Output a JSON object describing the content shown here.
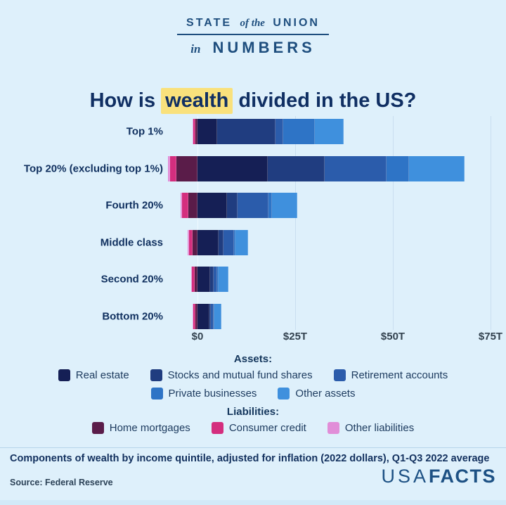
{
  "masthead": {
    "word1": "STATE",
    "word2": "of the",
    "word3": "UNION",
    "word4": "in",
    "word5": "NUMBERS"
  },
  "title": {
    "prefix": "How is ",
    "highlight": "wealth",
    "suffix": " divided in the US?",
    "highlight_color": "#f9e17c"
  },
  "chart_data": {
    "type": "bar",
    "orientation": "horizontal-stacked",
    "title": "How is wealth divided in the US?",
    "unit": "trillions of US dollars",
    "xlim": [
      -10,
      78
    ],
    "grid": true,
    "categories": [
      "Top 1%",
      "Top 20% (excluding top 1%)",
      "Fourth 20%",
      "Middle class",
      "Second 20%",
      "Bottom 20%"
    ],
    "x_ticks": {
      "labels": [
        "$0",
        "$25T",
        "$50T",
        "$75T"
      ],
      "values": [
        0,
        25,
        50,
        75
      ]
    },
    "asset_series": [
      {
        "name": "Real estate",
        "color": "#151f55",
        "values": [
          5.0,
          18.0,
          7.5,
          5.4,
          3.2,
          3.0
        ]
      },
      {
        "name": "Stocks and mutual fund shares",
        "color": "#203d80",
        "values": [
          15.0,
          14.5,
          2.7,
          1.2,
          0.9,
          0.5
        ]
      },
      {
        "name": "Retirement accounts",
        "color": "#2b5cab",
        "values": [
          1.9,
          15.8,
          8.0,
          2.7,
          1.0,
          0.6
        ]
      },
      {
        "name": "Private businesses",
        "color": "#2e74c6",
        "values": [
          8.1,
          5.9,
          0.9,
          0.4,
          0.3,
          0.2
        ]
      },
      {
        "name": "Other assets",
        "color": "#3f90dd",
        "values": [
          7.5,
          14.2,
          6.4,
          3.2,
          2.5,
          1.8
        ]
      }
    ],
    "liability_series": [
      {
        "name": "Home mortgages",
        "color": "#5a1c49",
        "values": [
          0.6,
          5.4,
          2.4,
          1.3,
          0.7,
          0.5
        ]
      },
      {
        "name": "Consumer credit",
        "color": "#d42e7e",
        "values": [
          0.4,
          1.6,
          1.6,
          0.9,
          0.7,
          0.5
        ]
      },
      {
        "name": "Other liabilities",
        "color": "#e18ed8",
        "values": [
          0.3,
          0.6,
          0.4,
          0.3,
          0.2,
          0.2
        ]
      }
    ],
    "legend_position": "bottom",
    "note": "liabilities extend left of the $0 line"
  },
  "legend": {
    "assets_header": "Assets:",
    "liabilities_header": "Liabilities:"
  },
  "footnote": "Components of wealth by income quintile, adjusted for inflation (2022 dollars), Q1-Q3 2022 average",
  "source": "Source: Federal Reserve",
  "logo": {
    "part1": "USA",
    "part2": "FACTS"
  }
}
